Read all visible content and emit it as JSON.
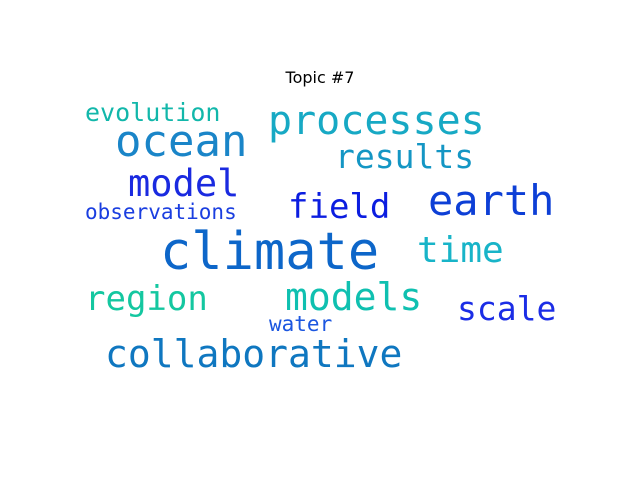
{
  "chart_data": {
    "type": "wordcloud",
    "title": "Topic #7",
    "words": [
      {
        "text": "climate",
        "weight": 1.0,
        "color": "#0d66c9"
      },
      {
        "text": "ocean",
        "weight": 0.72,
        "color": "#1a85c8"
      },
      {
        "text": "processes",
        "weight": 0.66,
        "color": "#17a9c4"
      },
      {
        "text": "earth",
        "weight": 0.64,
        "color": "#0d3fd6"
      },
      {
        "text": "models",
        "weight": 0.62,
        "color": "#0fc0b0"
      },
      {
        "text": "collaborative",
        "weight": 0.6,
        "color": "#0f77c0"
      },
      {
        "text": "model",
        "weight": 0.58,
        "color": "#1a2ae0"
      },
      {
        "text": "time",
        "weight": 0.55,
        "color": "#18b4c8"
      },
      {
        "text": "region",
        "weight": 0.54,
        "color": "#14c7a0"
      },
      {
        "text": "field",
        "weight": 0.53,
        "color": "#0b1de0"
      },
      {
        "text": "scale",
        "weight": 0.52,
        "color": "#1b2de6"
      },
      {
        "text": "results",
        "weight": 0.5,
        "color": "#1496c4"
      },
      {
        "text": "evolution",
        "weight": 0.4,
        "color": "#12b7aa"
      },
      {
        "text": "observations",
        "weight": 0.35,
        "color": "#1a3ee0"
      },
      {
        "text": "water",
        "weight": 0.32,
        "color": "#1b56e0"
      }
    ]
  }
}
